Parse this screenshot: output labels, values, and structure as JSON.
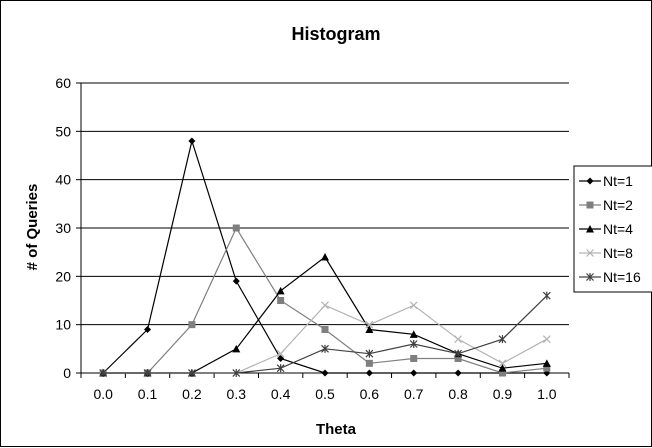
{
  "chart_data": {
    "type": "line",
    "title": "Histogram",
    "xlabel": "Theta",
    "ylabel": "# of Queries",
    "categories": [
      "0.0",
      "0.1",
      "0.2",
      "0.3",
      "0.4",
      "0.5",
      "0.6",
      "0.7",
      "0.8",
      "0.9",
      "1.0"
    ],
    "ylim": [
      0,
      60
    ],
    "yticks": [
      "0",
      "10",
      "20",
      "30",
      "40",
      "50",
      "60"
    ],
    "grid": "horizontal",
    "legend": "right",
    "series": [
      {
        "name": "Nt=1",
        "marker": "diamond",
        "color": "#000000",
        "values": [
          0,
          9,
          48,
          19,
          3,
          0,
          0,
          0,
          0,
          0,
          0
        ]
      },
      {
        "name": "Nt=2",
        "marker": "square",
        "color": "#7f7f7f",
        "values": [
          0,
          0,
          10,
          30,
          15,
          9,
          2,
          3,
          3,
          0,
          1
        ]
      },
      {
        "name": "Nt=4",
        "marker": "triangle",
        "color": "#000000",
        "values": [
          0,
          0,
          0,
          5,
          17,
          24,
          9,
          8,
          4,
          1,
          2
        ]
      },
      {
        "name": "Nt=8",
        "marker": "x",
        "color": "#b3b3b3",
        "values": [
          0,
          0,
          0,
          0,
          4,
          14,
          10,
          14,
          7,
          2,
          7
        ]
      },
      {
        "name": "Nt=16",
        "marker": "star",
        "color": "#404040",
        "values": [
          0,
          0,
          0,
          0,
          1,
          5,
          4,
          6,
          4,
          7,
          16
        ]
      }
    ]
  }
}
